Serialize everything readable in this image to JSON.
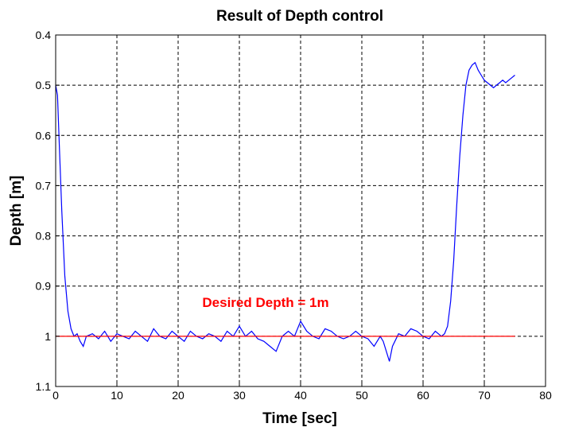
{
  "chart_data": {
    "type": "line",
    "title": "Result of Depth control",
    "xlabel": "Time [sec]",
    "ylabel": "Depth [m]",
    "xlim": [
      0,
      80
    ],
    "ylim": [
      0.4,
      1.1
    ],
    "y_reversed": true,
    "grid": true,
    "xticks": [
      0,
      10,
      20,
      30,
      40,
      50,
      60,
      70,
      80
    ],
    "xtick_labels": [
      "0",
      "10",
      "20",
      "30",
      "40",
      "50",
      "60",
      "70",
      "80"
    ],
    "yticks": [
      0.4,
      0.5,
      0.6,
      0.7,
      0.8,
      0.9,
      1.0,
      1.1
    ],
    "ytick_labels": [
      "0.4",
      "0.5",
      "0.6",
      "0.7",
      "0.8",
      "0.9",
      "1",
      "1.1"
    ],
    "annotation": {
      "text": "Desired Depth = 1m",
      "color": "#ff0000"
    },
    "series": [
      {
        "color": "#0000ff",
        "x": [
          0.0,
          0.3,
          0.6,
          1.0,
          1.5,
          2.0,
          2.5,
          3.0,
          3.5,
          4.0,
          4.5,
          5.0,
          6.0,
          7.0,
          8.0,
          9.0,
          10.0,
          11.0,
          12.0,
          13.0,
          14.0,
          15.0,
          16.0,
          17.0,
          18.0,
          19.0,
          20.0,
          21.0,
          22.0,
          23.0,
          24.0,
          25.0,
          26.0,
          27.0,
          28.0,
          29.0,
          30.0,
          31.0,
          32.0,
          33.0,
          34.0,
          35.0,
          36.0,
          37.0,
          38.0,
          39.0,
          40.0,
          41.0,
          42.0,
          43.0,
          44.0,
          45.0,
          46.0,
          47.0,
          48.0,
          49.0,
          50.0,
          51.0,
          52.0,
          53.0,
          53.5,
          54.0,
          54.5,
          55.0,
          56.0,
          57.0,
          58.0,
          59.0,
          60.0,
          61.0,
          62.0,
          63.0,
          63.5,
          64.0,
          64.5,
          65.0,
          65.5,
          66.0,
          66.5,
          67.0,
          67.5,
          68.0,
          68.5,
          69.0,
          69.5,
          70.0,
          70.5,
          71.0,
          71.5,
          72.0,
          72.5,
          73.0,
          73.5,
          74.0,
          74.5,
          75.0
        ],
        "y": [
          0.5,
          0.52,
          0.62,
          0.75,
          0.88,
          0.95,
          0.985,
          1.0,
          0.995,
          1.01,
          1.02,
          1.0,
          0.995,
          1.005,
          0.99,
          1.01,
          0.995,
          1.0,
          1.005,
          0.99,
          1.0,
          1.01,
          0.985,
          1.0,
          1.005,
          0.99,
          1.0,
          1.01,
          0.99,
          1.0,
          1.005,
          0.995,
          1.0,
          1.01,
          0.99,
          1.0,
          0.98,
          1.0,
          0.99,
          1.005,
          1.01,
          1.02,
          1.03,
          1.0,
          0.99,
          1.0,
          0.97,
          0.99,
          1.0,
          1.005,
          0.985,
          0.99,
          1.0,
          1.005,
          1.0,
          0.99,
          1.0,
          1.005,
          1.02,
          1.0,
          1.01,
          1.03,
          1.05,
          1.02,
          0.995,
          1.0,
          0.985,
          0.99,
          1.0,
          1.005,
          0.99,
          1.0,
          0.995,
          0.98,
          0.93,
          0.85,
          0.74,
          0.64,
          0.56,
          0.5,
          0.47,
          0.46,
          0.455,
          0.47,
          0.48,
          0.49,
          0.495,
          0.5,
          0.505,
          0.5,
          0.495,
          0.49,
          0.495,
          0.49,
          0.485,
          0.48
        ]
      },
      {
        "color": "#ff0000",
        "x": [
          0,
          75
        ],
        "y": [
          1.0,
          1.0
        ]
      }
    ]
  }
}
